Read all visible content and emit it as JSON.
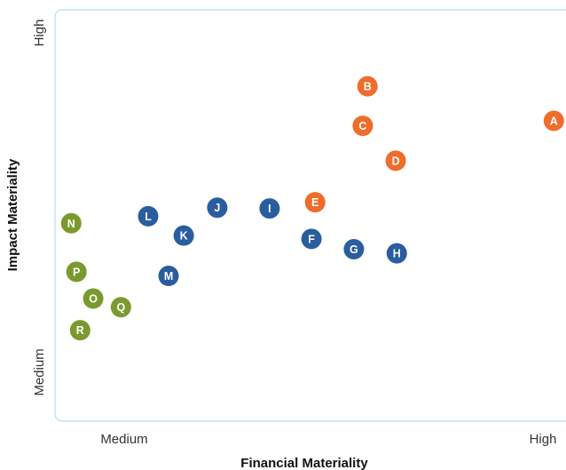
{
  "chart_data": {
    "type": "scatter",
    "title": "",
    "xlabel": "Financial Materiality",
    "ylabel": "Impact Materiality",
    "x_ticks": [
      "Medium",
      "High"
    ],
    "y_ticks": [
      "Medium",
      "High"
    ],
    "xlim": [
      0,
      10
    ],
    "ylim": [
      0,
      10
    ],
    "grid": false,
    "colors": {
      "orange": "#ef6c2b",
      "blue": "#2a5d9f",
      "green": "#7a9a2e",
      "frame": "#b9dcea"
    },
    "points": [
      {
        "label": "A",
        "x": 9.53,
        "y": 7.3,
        "color": "orange"
      },
      {
        "label": "B",
        "x": 5.97,
        "y": 8.14,
        "color": "orange"
      },
      {
        "label": "C",
        "x": 5.88,
        "y": 7.18,
        "color": "orange"
      },
      {
        "label": "D",
        "x": 6.51,
        "y": 6.33,
        "color": "orange"
      },
      {
        "label": "E",
        "x": 4.97,
        "y": 5.32,
        "color": "orange"
      },
      {
        "label": "F",
        "x": 4.9,
        "y": 4.43,
        "color": "blue"
      },
      {
        "label": "G",
        "x": 5.71,
        "y": 4.18,
        "color": "blue"
      },
      {
        "label": "H",
        "x": 6.53,
        "y": 4.08,
        "color": "blue"
      },
      {
        "label": "I",
        "x": 4.1,
        "y": 5.17,
        "color": "blue"
      },
      {
        "label": "J",
        "x": 3.1,
        "y": 5.19,
        "color": "blue"
      },
      {
        "label": "K",
        "x": 2.46,
        "y": 4.51,
        "color": "blue"
      },
      {
        "label": "L",
        "x": 1.78,
        "y": 4.98,
        "color": "blue"
      },
      {
        "label": "M",
        "x": 2.17,
        "y": 3.53,
        "color": "blue"
      },
      {
        "label": "N",
        "x": 0.31,
        "y": 4.81,
        "color": "green"
      },
      {
        "label": "O",
        "x": 0.73,
        "y": 2.98,
        "color": "green"
      },
      {
        "label": "P",
        "x": 0.41,
        "y": 3.63,
        "color": "green"
      },
      {
        "label": "Q",
        "x": 1.26,
        "y": 2.77,
        "color": "green"
      },
      {
        "label": "R",
        "x": 0.48,
        "y": 2.21,
        "color": "green"
      }
    ]
  }
}
